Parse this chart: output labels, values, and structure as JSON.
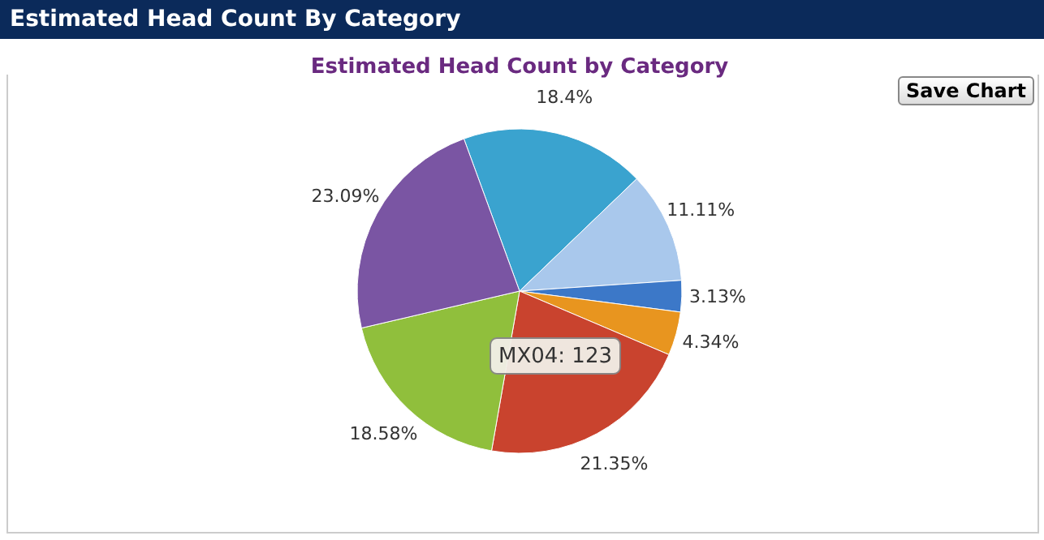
{
  "chart_data": {
    "type": "pie",
    "title": "Estimated Head Count by Category",
    "categories": [
      null,
      null,
      null,
      null,
      null,
      null,
      null
    ],
    "values": [
      18.4,
      11.11,
      3.13,
      4.34,
      21.35,
      18.58,
      23.09
    ],
    "value_labels": [
      "18.4%",
      "11.11%",
      "3.13%",
      "4.34%",
      "21.35%",
      "18.58%",
      "23.09%"
    ],
    "colors": [
      "#3aa3cf",
      "#a9c8ec",
      "#3c78c8",
      "#e8951f",
      "#c9432e",
      "#90bf3c",
      "#7a55a3"
    ],
    "annotations": [
      "Estimated Head Count By Category",
      "Save Chart",
      "MX04: 123"
    ],
    "legend": false
  }
}
